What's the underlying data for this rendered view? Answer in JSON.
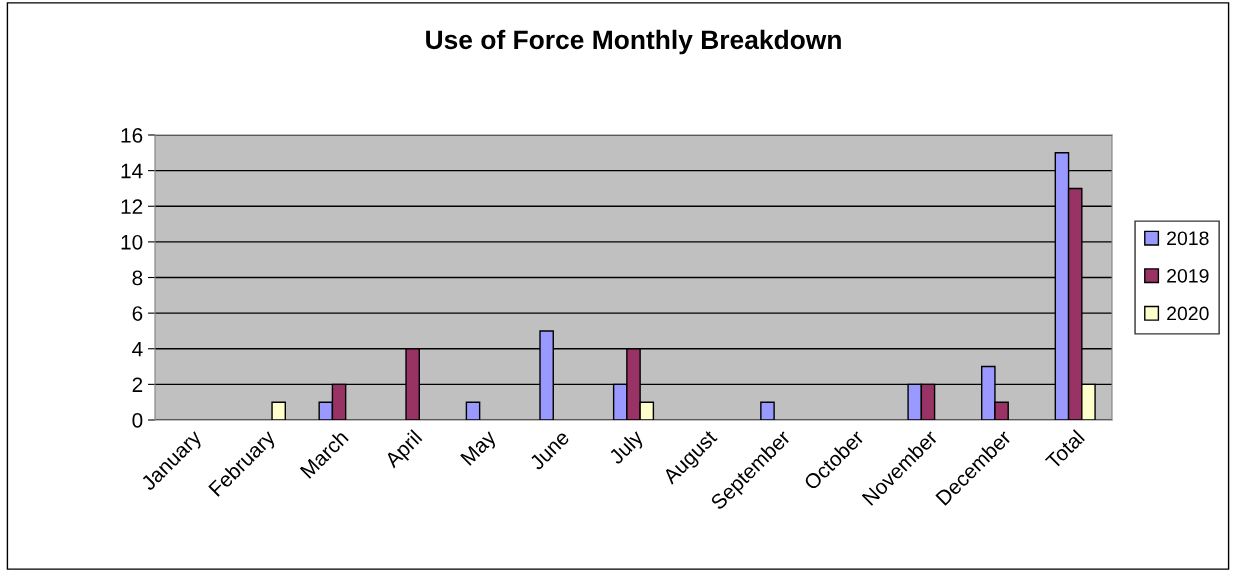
{
  "chart_data": {
    "type": "bar",
    "title": "Use of Force Monthly Breakdown",
    "categories": [
      "January",
      "February",
      "March",
      "April",
      "May",
      "June",
      "July",
      "August",
      "September",
      "October",
      "November",
      "December",
      "Total"
    ],
    "series": [
      {
        "name": "2018",
        "color": "#9999ff",
        "values": [
          null,
          null,
          1,
          null,
          1,
          5,
          2,
          null,
          1,
          null,
          2,
          3,
          15
        ]
      },
      {
        "name": "2019",
        "color": "#993366",
        "values": [
          null,
          null,
          2,
          4,
          null,
          null,
          4,
          null,
          null,
          null,
          2,
          1,
          13
        ]
      },
      {
        "name": "2020",
        "color": "#ffffcc",
        "values": [
          null,
          1,
          null,
          null,
          null,
          null,
          1,
          null,
          null,
          null,
          null,
          null,
          2
        ]
      }
    ],
    "ylim": [
      0,
      16
    ],
    "yticks": [
      0,
      2,
      4,
      6,
      8,
      10,
      12,
      14,
      16
    ],
    "grid": "y",
    "legend": "right"
  }
}
